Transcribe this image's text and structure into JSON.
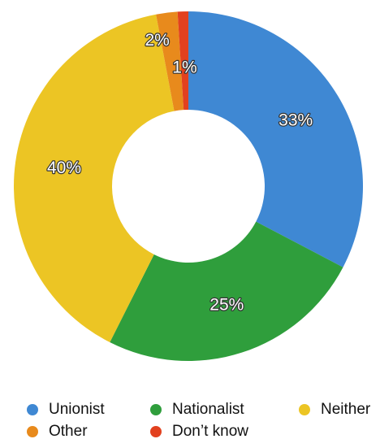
{
  "chart_data": {
    "type": "donut",
    "categories": [
      "Unionist",
      "Nationalist",
      "Neither",
      "Other",
      "Don’t know"
    ],
    "values": [
      33,
      25,
      40,
      2,
      1
    ],
    "value_labels": [
      "33%",
      "25%",
      "40%",
      "2%",
      "1%"
    ],
    "colors": [
      "#3f88d3",
      "#2f9e3c",
      "#ecc524",
      "#e88a1c",
      "#e2411f"
    ],
    "legend": "bottom"
  }
}
